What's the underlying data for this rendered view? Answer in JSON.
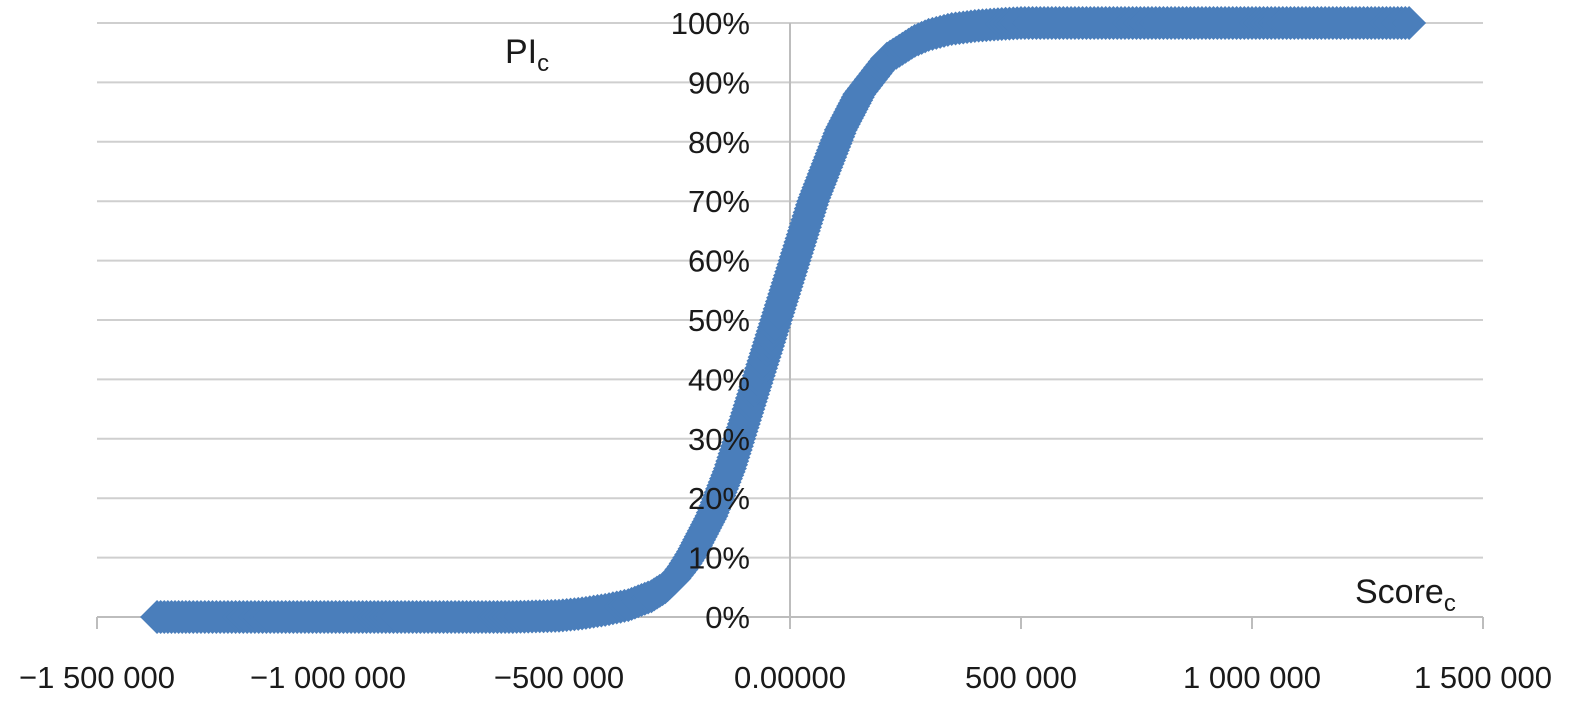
{
  "chart_data": {
    "type": "scatter",
    "title": "",
    "xlabel": {
      "main": "Score",
      "sub": "c"
    },
    "ylabel": {
      "main": "PI",
      "sub": "c"
    },
    "xlim": [
      -1500000,
      1500000
    ],
    "ylim": [
      0,
      1
    ],
    "x_ticks": [
      {
        "value": -1500000,
        "label": "−1 500 000"
      },
      {
        "value": -1000000,
        "label": "−1 000 000"
      },
      {
        "value": -500000,
        "label": "−500 000"
      },
      {
        "value": 0,
        "label": "0.00000"
      },
      {
        "value": 500000,
        "label": "500 000"
      },
      {
        "value": 1000000,
        "label": "1 000 000"
      },
      {
        "value": 1500000,
        "label": "1 500 000"
      }
    ],
    "y_ticks": [
      {
        "value": 0.0,
        "label": "0%"
      },
      {
        "value": 0.1,
        "label": "10%"
      },
      {
        "value": 0.2,
        "label": "20%"
      },
      {
        "value": 0.3,
        "label": "30%"
      },
      {
        "value": 0.4,
        "label": "40%"
      },
      {
        "value": 0.5,
        "label": "50%"
      },
      {
        "value": 0.6,
        "label": "60%"
      },
      {
        "value": 0.7,
        "label": "70%"
      },
      {
        "value": 0.8,
        "label": "80%"
      },
      {
        "value": 0.9,
        "label": "90%"
      },
      {
        "value": 1.0,
        "label": "100%"
      }
    ],
    "grid": true,
    "marker": "diamond",
    "color": "#4a7ebb",
    "series": [
      {
        "x": [
          -1370000,
          -1300000,
          -1200000,
          -1100000,
          -1000000,
          -900000,
          -800000,
          -700000,
          -600000,
          -500000,
          -450000,
          -400000,
          -350000,
          -300000,
          -270000,
          -250000,
          -230000,
          -210000,
          -190000,
          -170000,
          -150000,
          -130000,
          -110000,
          -90000,
          -70000,
          -50000,
          -30000,
          -10000,
          10000,
          30000,
          50000,
          70000,
          90000,
          110000,
          130000,
          150000,
          170000,
          190000,
          210000,
          230000,
          250000,
          270000,
          300000,
          350000,
          400000,
          450000,
          500000,
          600000,
          700000,
          800000,
          900000,
          1000000,
          1100000,
          1150000,
          1250000,
          1340000
        ],
        "y": [
          0,
          0,
          0,
          0,
          0,
          0,
          0,
          0,
          0,
          0.002,
          0.006,
          0.012,
          0.02,
          0.035,
          0.05,
          0.065,
          0.085,
          0.11,
          0.14,
          0.17,
          0.21,
          0.25,
          0.3,
          0.35,
          0.4,
          0.45,
          0.5,
          0.55,
          0.6,
          0.65,
          0.7,
          0.74,
          0.78,
          0.82,
          0.85,
          0.88,
          0.9,
          0.92,
          0.94,
          0.95,
          0.96,
          0.97,
          0.98,
          0.99,
          0.995,
          0.998,
          1,
          1,
          1,
          1,
          1,
          1,
          1,
          1,
          1,
          1
        ]
      }
    ]
  }
}
